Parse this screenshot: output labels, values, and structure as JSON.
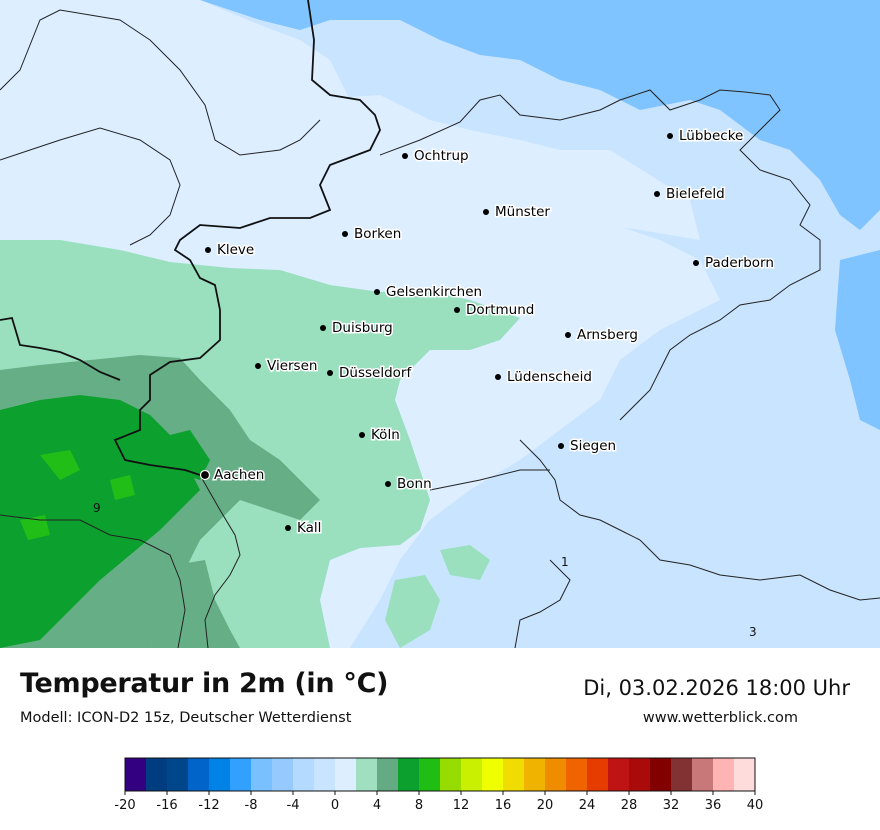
{
  "header": {
    "title": "Temperatur in 2m (in °C)",
    "subtitle": "Modell: ICON-D2 15z, Deutscher Wetterdienst",
    "datetime": "Di, 03.02.2026 18:00 Uhr",
    "website": "www.wetterblick.com"
  },
  "map": {
    "cities": [
      {
        "name": "Lübbecke"
      },
      {
        "name": "Ochtrup"
      },
      {
        "name": "Bielefeld"
      },
      {
        "name": "Münster"
      },
      {
        "name": "Borken"
      },
      {
        "name": "Kleve"
      },
      {
        "name": "Paderborn"
      },
      {
        "name": "Gelsenkirchen"
      },
      {
        "name": "Dortmund"
      },
      {
        "name": "Duisburg"
      },
      {
        "name": "Arnsberg"
      },
      {
        "name": "Viersen"
      },
      {
        "name": "Düsseldorf"
      },
      {
        "name": "Lüdenscheid"
      },
      {
        "name": "Köln"
      },
      {
        "name": "Siegen"
      },
      {
        "name": "Aachen"
      },
      {
        "name": "Bonn"
      },
      {
        "name": "Kall"
      }
    ],
    "value_labels": [
      "9",
      "1",
      "3"
    ],
    "colors": {
      "band_minus4_minus2": "#80c4ff",
      "band_minus2_0": "#c8e4ff",
      "band_0_2": "#dceeff",
      "band_2_4": "#9adfbe",
      "band_4_6": "#66ae86",
      "band_6_8": "#0ca02e",
      "band_8_10": "#22be18"
    }
  },
  "legend": {
    "ticks": [
      "-20",
      "-16",
      "-12",
      "-8",
      "-4",
      "0",
      "4",
      "8",
      "12",
      "16",
      "20",
      "24",
      "28",
      "32",
      "36",
      "40"
    ],
    "colors": [
      "#320080",
      "#003c80",
      "#00468a",
      "#0064c8",
      "#0082e6",
      "#32a0ff",
      "#78c0ff",
      "#96caff",
      "#b4daff",
      "#c8e4ff",
      "#dceeff",
      "#a0e0c0",
      "#64aa82",
      "#0ca02e",
      "#20be14",
      "#96dc00",
      "#c8f000",
      "#f0ff00",
      "#f0dc00",
      "#f0b400",
      "#f08c00",
      "#f06400",
      "#e63c00",
      "#be1414",
      "#aa0a0a",
      "#820000",
      "#823232",
      "#c87878",
      "#ffb4b4",
      "#ffdcdc"
    ]
  }
}
